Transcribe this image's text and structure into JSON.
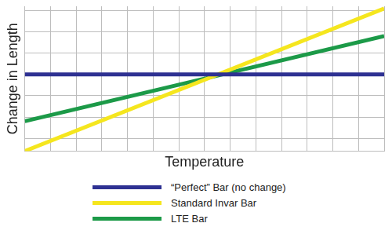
{
  "chart_data": {
    "type": "line",
    "x_label": "Temperature",
    "y_label": "Change in Length",
    "x": [
      0,
      14
    ],
    "series": [
      {
        "name": "“Perfect” Bar (no change)",
        "color": "#2e3192",
        "values": [
          0,
          0
        ]
      },
      {
        "name": "Standard Invar Bar",
        "color": "#f5e61e",
        "values": [
          -3.6,
          3.1
        ]
      },
      {
        "name": "LTE Bar",
        "color": "#1c9a48",
        "values": [
          -2.2,
          1.8
        ]
      }
    ],
    "xlim": [
      0,
      14
    ],
    "xticks": [
      0,
      1,
      2,
      3,
      4,
      5,
      6,
      7,
      8,
      9,
      10,
      11,
      12,
      13,
      14
    ],
    "ylim": [
      -3.6,
      3.2
    ],
    "yticks": [
      -3,
      -2,
      -1,
      0,
      1,
      2,
      3
    ],
    "grid": true,
    "tick_labels": false,
    "legend": "bottom"
  }
}
